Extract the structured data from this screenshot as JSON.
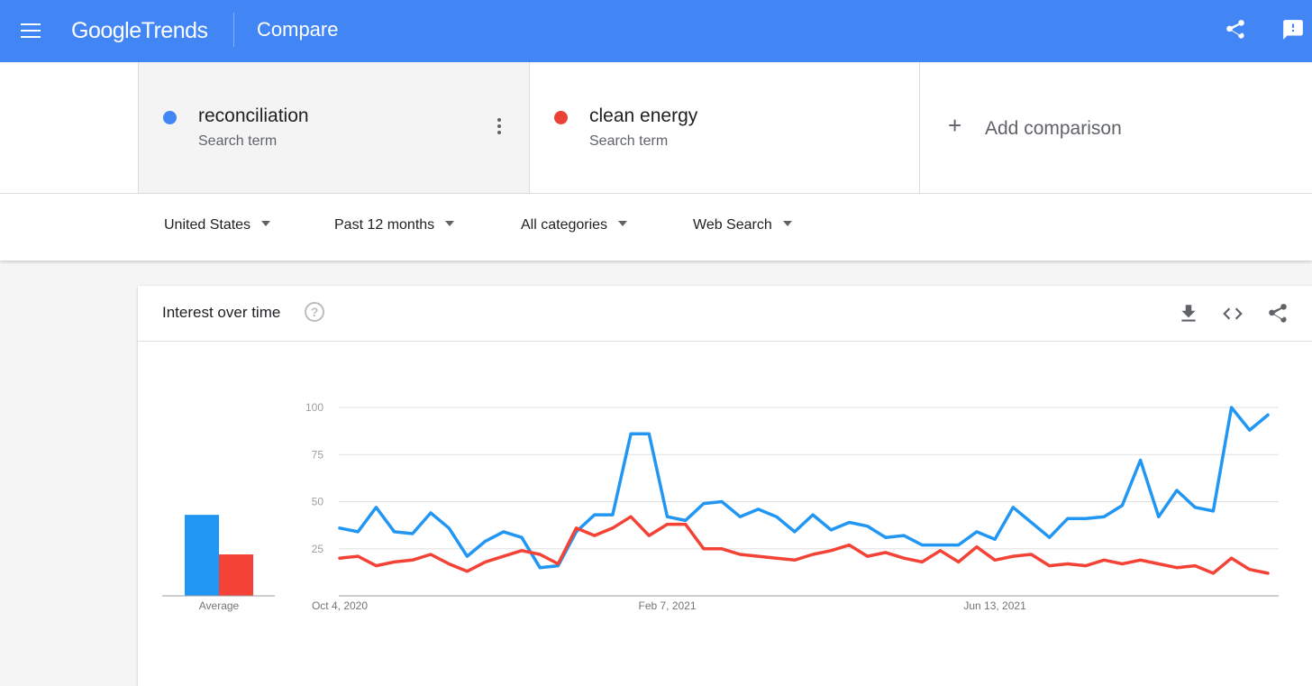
{
  "header": {
    "brand": "Google Trends",
    "brand_word1": "Google",
    "brand_word2": "Trends",
    "title": "Compare",
    "color": "#4285f4",
    "icons": [
      "menu-icon",
      "share-icon",
      "feedback-icon"
    ]
  },
  "terms": [
    {
      "name": "reconciliation",
      "type": "Search term",
      "color": "#4285f4"
    },
    {
      "name": "clean energy",
      "type": "Search term",
      "color": "#ea4335"
    }
  ],
  "add_comparison": "Add comparison",
  "filters": {
    "region": "United States",
    "time": "Past 12 months",
    "category": "All categories",
    "property": "Web Search"
  },
  "card": {
    "title": "Interest over time",
    "icons": [
      "help-icon",
      "download-icon",
      "embed-icon",
      "share-icon"
    ]
  },
  "chart_data": {
    "type": "line",
    "title": "Interest over time",
    "ylim": [
      0,
      100
    ],
    "yticks": [
      25,
      50,
      75,
      100
    ],
    "xtick_labels": [
      "Oct 4, 2020",
      "Feb 7, 2021",
      "Jun 13, 2021"
    ],
    "grid": true,
    "average": {
      "label": "Average",
      "values": [
        43,
        22
      ]
    },
    "series": [
      {
        "name": "reconciliation",
        "color": "#2196f3",
        "values": [
          36,
          34,
          47,
          34,
          33,
          44,
          36,
          21,
          29,
          34,
          31,
          15,
          16,
          34,
          43,
          43,
          86,
          86,
          42,
          40,
          49,
          50,
          42,
          46,
          42,
          34,
          43,
          35,
          39,
          37,
          31,
          32,
          27,
          27,
          27,
          34,
          30,
          47,
          39,
          31,
          41,
          41,
          42,
          48,
          72,
          42,
          56,
          47,
          45,
          100,
          88,
          96
        ]
      },
      {
        "name": "clean energy",
        "color": "#f44336",
        "values": [
          20,
          21,
          16,
          18,
          19,
          22,
          17,
          13,
          18,
          21,
          24,
          22,
          17,
          36,
          32,
          36,
          42,
          32,
          38,
          38,
          25,
          25,
          22,
          21,
          20,
          19,
          22,
          24,
          27,
          21,
          23,
          20,
          18,
          24,
          18,
          26,
          19,
          21,
          22,
          16,
          17,
          16,
          19,
          17,
          19,
          17,
          15,
          16,
          12,
          20,
          14,
          12
        ]
      }
    ]
  }
}
